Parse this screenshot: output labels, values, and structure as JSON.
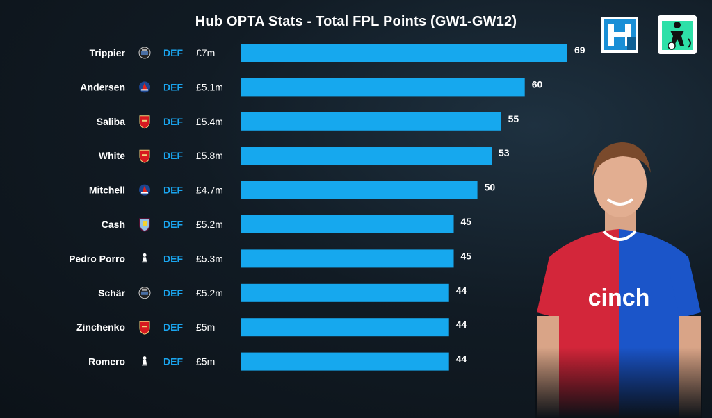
{
  "title": "Hub OPTA Stats - Total FPL Points (GW1-GW12)",
  "colors": {
    "bar": "#16a8ee",
    "position": "#1aa6f0",
    "background": "#111b24"
  },
  "logos": [
    "fantasy-football-hub-logo",
    "fpl-hub-logo"
  ],
  "chart_data": {
    "type": "bar",
    "orientation": "horizontal",
    "categories": [
      "Trippier",
      "Andersen",
      "Saliba",
      "White",
      "Mitchell",
      "Cash",
      "Pedro Porro",
      "Schär",
      "Zinchenko",
      "Romero"
    ],
    "values": [
      69,
      60,
      55,
      53,
      50,
      45,
      45,
      44,
      44,
      44
    ],
    "positions": [
      "DEF",
      "DEF",
      "DEF",
      "DEF",
      "DEF",
      "DEF",
      "DEF",
      "DEF",
      "DEF",
      "DEF"
    ],
    "prices": [
      "£7m",
      "£5.1m",
      "£5.4m",
      "£5.8m",
      "£4.7m",
      "£5.2m",
      "£5.3m",
      "£5.2m",
      "£5m",
      "£5m"
    ],
    "clubs": [
      "newcastle",
      "crystal-palace",
      "arsenal",
      "arsenal",
      "crystal-palace",
      "aston-villa",
      "tottenham",
      "newcastle",
      "arsenal",
      "tottenham"
    ],
    "xlim": [
      0,
      69
    ],
    "grid": false,
    "title": "Hub OPTA Stats - Total FPL Points (GW1-GW12)"
  }
}
